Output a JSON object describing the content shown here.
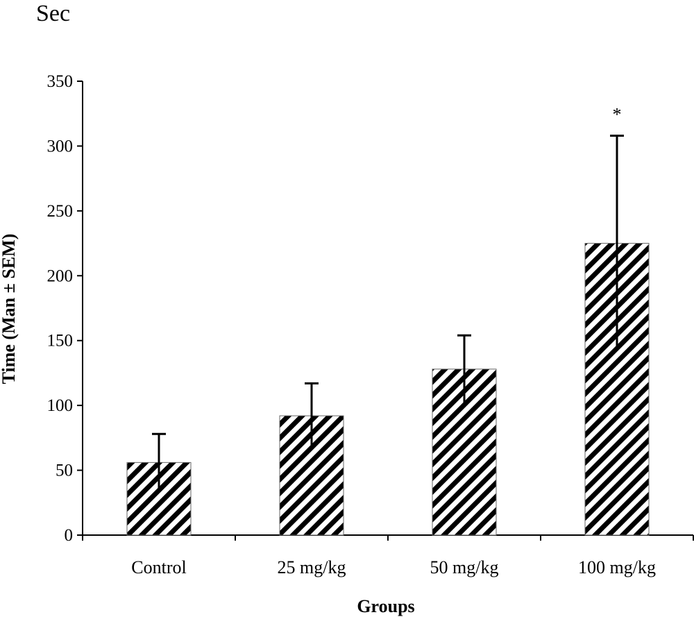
{
  "unit_label": "Sec",
  "chart_data": {
    "type": "bar",
    "categories": [
      "Control",
      "25 mg/kg",
      "50 mg/kg",
      "100 mg/kg"
    ],
    "values": [
      56,
      92,
      128,
      225
    ],
    "error_bars": [
      22,
      25,
      26,
      83
    ],
    "annotations": [
      "",
      "",
      "",
      "*"
    ],
    "xlabel": "Groups",
    "ylabel": "Time (Man ± SEM)",
    "ylim": [
      0,
      350
    ],
    "yticks": [
      0,
      50,
      100,
      150,
      200,
      250,
      300,
      350
    ],
    "grid": false,
    "legend": "none",
    "bar_pattern": "diagonal-hatch",
    "bar_color": "#000000"
  }
}
